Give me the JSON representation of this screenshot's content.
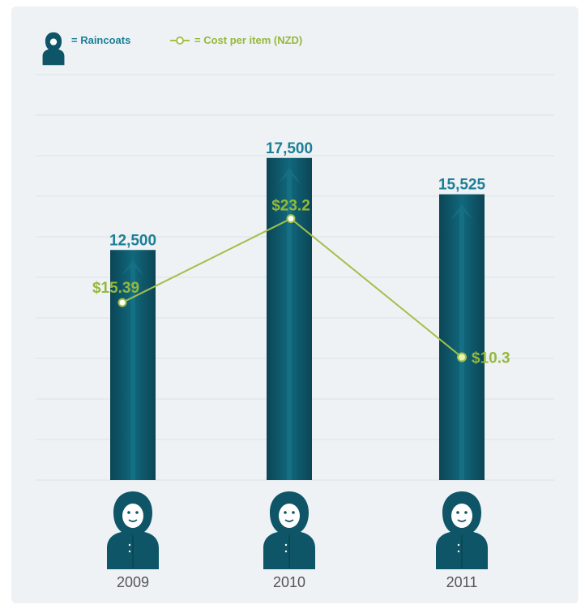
{
  "legend": {
    "raincoats_label": "= Raincoats",
    "cost_label": "= Cost per item (NZD)"
  },
  "colors": {
    "bar": "#0e5567",
    "bar_label": "#1d7f96",
    "line": "#a3c04a",
    "cost_label": "#95b83a",
    "grid": "#dfe5ea",
    "year_label": "#555555",
    "card": "#eef2f5"
  },
  "icons": {
    "legend": "hooded-raincoat-icon",
    "category": "hooded-person-raincoat-icon"
  },
  "chart_data": {
    "type": "bar",
    "categories": [
      "2009",
      "2010",
      "2011"
    ],
    "series": [
      {
        "name": "Raincoats",
        "type": "bar",
        "values": [
          12500,
          17500,
          15525
        ],
        "labels": [
          "12,500",
          "17,500",
          "15,525"
        ]
      },
      {
        "name": "Cost per item (NZD)",
        "type": "line",
        "values": [
          15.39,
          23.2,
          10.3
        ],
        "labels": [
          "$15.39",
          "$23.2",
          "$10.3"
        ]
      }
    ],
    "grid": true,
    "legend_position": "top-left"
  }
}
